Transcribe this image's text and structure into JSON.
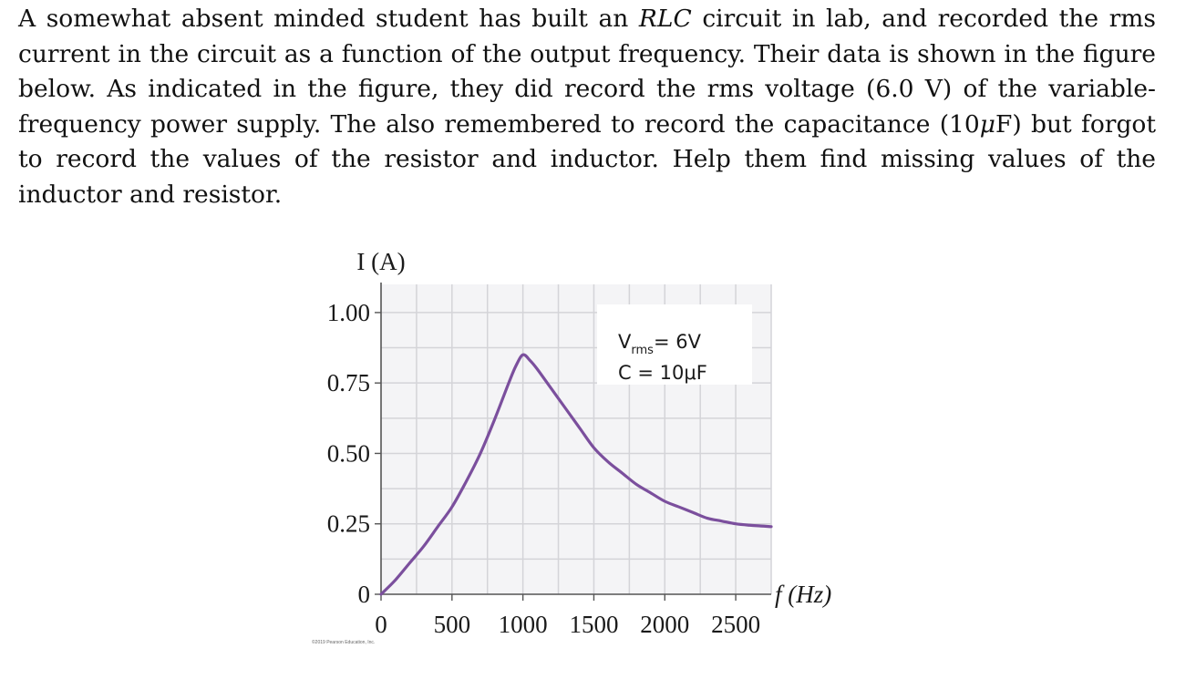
{
  "problem": {
    "parts": [
      "A somewhat absent minded student has built an ",
      "RLC",
      " circuit in lab, and recorded the rms current in the circuit as a function of the output frequency.  Their data is shown in the figure below.  As indicated in the figure, they did record the rms voltage (6.0 V) of the variable-frequency power supply.  The also remembered to record the capacitance (10",
      "μ",
      "F) but forgot to record the values of the resistor and inductor.  Help them find missing values of the inductor and resistor."
    ]
  },
  "chart_data": {
    "type": "line",
    "ylabel": "I (A)",
    "xlabel": "f (Hz)",
    "xlim": [
      0,
      2750
    ],
    "ylim": [
      0,
      1.1
    ],
    "x_ticks": [
      0,
      500,
      1000,
      1500,
      2000,
      2500
    ],
    "x_tick_labels": [
      "0",
      "500",
      "1000",
      "1500",
      "2000",
      "2500"
    ],
    "y_ticks": [
      0,
      0.25,
      0.5,
      0.75,
      1.0
    ],
    "y_tick_labels": [
      "0",
      "0.25",
      "0.50",
      "0.75",
      "1.00"
    ],
    "grid": true,
    "series": [
      {
        "color": "#7b4f9d",
        "x": [
          0,
          100,
          200,
          300,
          400,
          500,
          600,
          700,
          800,
          900,
          950,
          1000,
          1050,
          1100,
          1200,
          1300,
          1400,
          1500,
          1600,
          1700,
          1800,
          1900,
          2000,
          2100,
          2200,
          2300,
          2400,
          2500,
          2600,
          2750
        ],
        "y": [
          0,
          0.05,
          0.11,
          0.17,
          0.24,
          0.31,
          0.4,
          0.5,
          0.62,
          0.75,
          0.81,
          0.85,
          0.83,
          0.8,
          0.73,
          0.66,
          0.59,
          0.52,
          0.47,
          0.43,
          0.39,
          0.36,
          0.33,
          0.31,
          0.29,
          0.27,
          0.26,
          0.25,
          0.245,
          0.24
        ]
      }
    ],
    "annotations": [
      {
        "main": "V",
        "sub": "rms",
        "rest": "= 6V"
      },
      {
        "text": "C = 10μF"
      }
    ],
    "copyright": "©2019 Pearson Education, Inc."
  }
}
